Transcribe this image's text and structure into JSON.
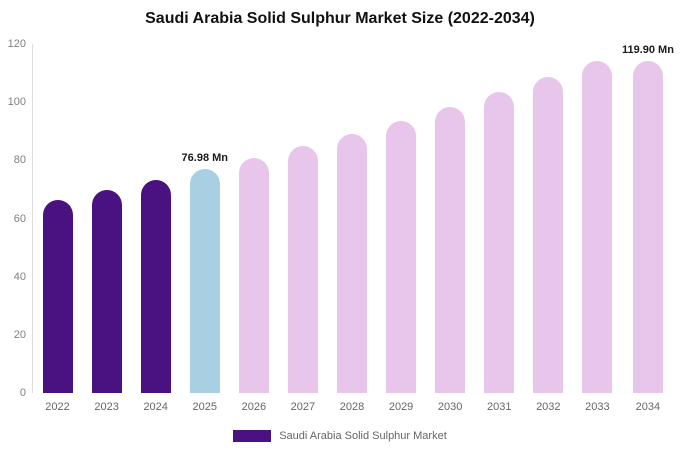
{
  "chart_data": {
    "type": "bar",
    "title": "Saudi Arabia Solid Sulphur Market Size (2022-2034)",
    "xlabel": "",
    "ylabel": "",
    "ylim": [
      0,
      120
    ],
    "yticks": [
      0,
      20,
      40,
      60,
      80,
      100,
      120
    ],
    "grid": false,
    "legend_position": "bottom",
    "categories": [
      "2022",
      "2023",
      "2024",
      "2025",
      "2026",
      "2027",
      "2028",
      "2029",
      "2030",
      "2031",
      "2032",
      "2033",
      "2034"
    ],
    "values": [
      66.4,
      69.8,
      73.3,
      76.98,
      80.9,
      84.9,
      89.2,
      93.7,
      98.4,
      103.4,
      108.6,
      114.1,
      119.9
    ],
    "bar_colors": [
      "#4A1280",
      "#4A1280",
      "#4A1280",
      "#A9CFE2",
      "#E8C6EB",
      "#E8C6EB",
      "#E8C6EB",
      "#E8C6EB",
      "#E8C6EB",
      "#E8C6EB",
      "#E8C6EB",
      "#E8C6EB",
      "#E8C6EB"
    ],
    "annotations": [
      {
        "index": 3,
        "text": "76.98 Mn"
      },
      {
        "index": 12,
        "text": "119.90 Mn"
      }
    ],
    "legend": {
      "label": "Saudi Arabia Solid Sulphur Market",
      "swatch_color": "#4A1280"
    },
    "colors": {
      "historical_bar": "#4A1280",
      "current_year_bar": "#A9CFE2",
      "forecast_bar": "#E8C6EB",
      "axis_line": "#DCDCDC",
      "tick_text": "#808080",
      "category_text": "#666666",
      "title_text": "#111111"
    }
  }
}
